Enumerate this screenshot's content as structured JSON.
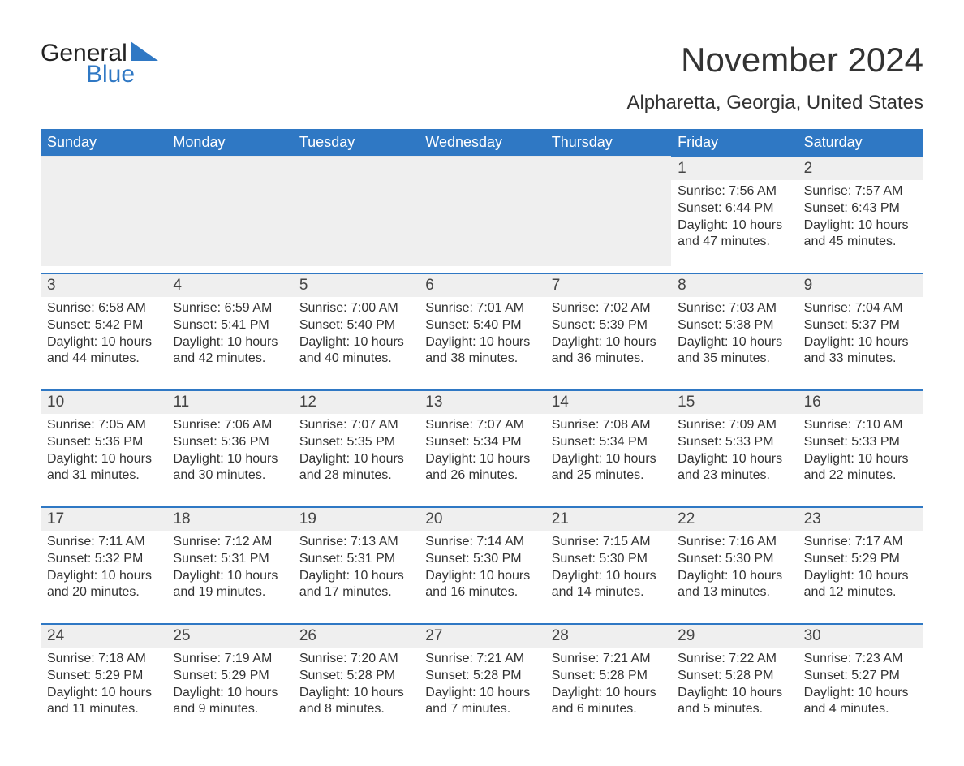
{
  "logo": {
    "line1": "General",
    "line2": "Blue"
  },
  "title": "November 2024",
  "subtitle": "Alpharetta, Georgia, United States",
  "colors": {
    "header_bg": "#2f78c4",
    "header_text": "#ffffff",
    "day_header_bg": "#efefef",
    "week_rule": "#2f78c4",
    "text": "#333333",
    "logo_blue": "#2f78c4",
    "background": "#ffffff"
  },
  "fonts": {
    "title_size_pt": 32,
    "subtitle_size_pt": 18,
    "weekday_size_pt": 14,
    "daynum_size_pt": 15,
    "detail_size_pt": 12
  },
  "layout": {
    "columns": 7,
    "rows": 5,
    "aspect_ratio": "1188x918"
  },
  "weekdays": [
    "Sunday",
    "Monday",
    "Tuesday",
    "Wednesday",
    "Thursday",
    "Friday",
    "Saturday"
  ],
  "weeks": [
    [
      null,
      null,
      null,
      null,
      null,
      {
        "day": "1",
        "sunrise": "Sunrise: 7:56 AM",
        "sunset": "Sunset: 6:44 PM",
        "daylight": "Daylight: 10 hours and 47 minutes."
      },
      {
        "day": "2",
        "sunrise": "Sunrise: 7:57 AM",
        "sunset": "Sunset: 6:43 PM",
        "daylight": "Daylight: 10 hours and 45 minutes."
      }
    ],
    [
      {
        "day": "3",
        "sunrise": "Sunrise: 6:58 AM",
        "sunset": "Sunset: 5:42 PM",
        "daylight": "Daylight: 10 hours and 44 minutes."
      },
      {
        "day": "4",
        "sunrise": "Sunrise: 6:59 AM",
        "sunset": "Sunset: 5:41 PM",
        "daylight": "Daylight: 10 hours and 42 minutes."
      },
      {
        "day": "5",
        "sunrise": "Sunrise: 7:00 AM",
        "sunset": "Sunset: 5:40 PM",
        "daylight": "Daylight: 10 hours and 40 minutes."
      },
      {
        "day": "6",
        "sunrise": "Sunrise: 7:01 AM",
        "sunset": "Sunset: 5:40 PM",
        "daylight": "Daylight: 10 hours and 38 minutes."
      },
      {
        "day": "7",
        "sunrise": "Sunrise: 7:02 AM",
        "sunset": "Sunset: 5:39 PM",
        "daylight": "Daylight: 10 hours and 36 minutes."
      },
      {
        "day": "8",
        "sunrise": "Sunrise: 7:03 AM",
        "sunset": "Sunset: 5:38 PM",
        "daylight": "Daylight: 10 hours and 35 minutes."
      },
      {
        "day": "9",
        "sunrise": "Sunrise: 7:04 AM",
        "sunset": "Sunset: 5:37 PM",
        "daylight": "Daylight: 10 hours and 33 minutes."
      }
    ],
    [
      {
        "day": "10",
        "sunrise": "Sunrise: 7:05 AM",
        "sunset": "Sunset: 5:36 PM",
        "daylight": "Daylight: 10 hours and 31 minutes."
      },
      {
        "day": "11",
        "sunrise": "Sunrise: 7:06 AM",
        "sunset": "Sunset: 5:36 PM",
        "daylight": "Daylight: 10 hours and 30 minutes."
      },
      {
        "day": "12",
        "sunrise": "Sunrise: 7:07 AM",
        "sunset": "Sunset: 5:35 PM",
        "daylight": "Daylight: 10 hours and 28 minutes."
      },
      {
        "day": "13",
        "sunrise": "Sunrise: 7:07 AM",
        "sunset": "Sunset: 5:34 PM",
        "daylight": "Daylight: 10 hours and 26 minutes."
      },
      {
        "day": "14",
        "sunrise": "Sunrise: 7:08 AM",
        "sunset": "Sunset: 5:34 PM",
        "daylight": "Daylight: 10 hours and 25 minutes."
      },
      {
        "day": "15",
        "sunrise": "Sunrise: 7:09 AM",
        "sunset": "Sunset: 5:33 PM",
        "daylight": "Daylight: 10 hours and 23 minutes."
      },
      {
        "day": "16",
        "sunrise": "Sunrise: 7:10 AM",
        "sunset": "Sunset: 5:33 PM",
        "daylight": "Daylight: 10 hours and 22 minutes."
      }
    ],
    [
      {
        "day": "17",
        "sunrise": "Sunrise: 7:11 AM",
        "sunset": "Sunset: 5:32 PM",
        "daylight": "Daylight: 10 hours and 20 minutes."
      },
      {
        "day": "18",
        "sunrise": "Sunrise: 7:12 AM",
        "sunset": "Sunset: 5:31 PM",
        "daylight": "Daylight: 10 hours and 19 minutes."
      },
      {
        "day": "19",
        "sunrise": "Sunrise: 7:13 AM",
        "sunset": "Sunset: 5:31 PM",
        "daylight": "Daylight: 10 hours and 17 minutes."
      },
      {
        "day": "20",
        "sunrise": "Sunrise: 7:14 AM",
        "sunset": "Sunset: 5:30 PM",
        "daylight": "Daylight: 10 hours and 16 minutes."
      },
      {
        "day": "21",
        "sunrise": "Sunrise: 7:15 AM",
        "sunset": "Sunset: 5:30 PM",
        "daylight": "Daylight: 10 hours and 14 minutes."
      },
      {
        "day": "22",
        "sunrise": "Sunrise: 7:16 AM",
        "sunset": "Sunset: 5:30 PM",
        "daylight": "Daylight: 10 hours and 13 minutes."
      },
      {
        "day": "23",
        "sunrise": "Sunrise: 7:17 AM",
        "sunset": "Sunset: 5:29 PM",
        "daylight": "Daylight: 10 hours and 12 minutes."
      }
    ],
    [
      {
        "day": "24",
        "sunrise": "Sunrise: 7:18 AM",
        "sunset": "Sunset: 5:29 PM",
        "daylight": "Daylight: 10 hours and 11 minutes."
      },
      {
        "day": "25",
        "sunrise": "Sunrise: 7:19 AM",
        "sunset": "Sunset: 5:29 PM",
        "daylight": "Daylight: 10 hours and 9 minutes."
      },
      {
        "day": "26",
        "sunrise": "Sunrise: 7:20 AM",
        "sunset": "Sunset: 5:28 PM",
        "daylight": "Daylight: 10 hours and 8 minutes."
      },
      {
        "day": "27",
        "sunrise": "Sunrise: 7:21 AM",
        "sunset": "Sunset: 5:28 PM",
        "daylight": "Daylight: 10 hours and 7 minutes."
      },
      {
        "day": "28",
        "sunrise": "Sunrise: 7:21 AM",
        "sunset": "Sunset: 5:28 PM",
        "daylight": "Daylight: 10 hours and 6 minutes."
      },
      {
        "day": "29",
        "sunrise": "Sunrise: 7:22 AM",
        "sunset": "Sunset: 5:28 PM",
        "daylight": "Daylight: 10 hours and 5 minutes."
      },
      {
        "day": "30",
        "sunrise": "Sunrise: 7:23 AM",
        "sunset": "Sunset: 5:27 PM",
        "daylight": "Daylight: 10 hours and 4 minutes."
      }
    ]
  ]
}
